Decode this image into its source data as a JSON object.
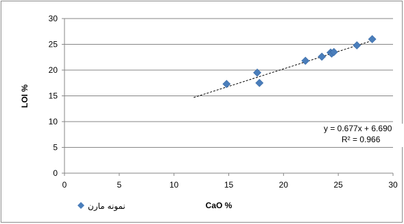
{
  "chart_data": {
    "type": "scatter",
    "xlabel": "CaO %",
    "ylabel": "LOI %",
    "xlim": [
      0,
      30
    ],
    "ylim": [
      0,
      30
    ],
    "x_ticks": [
      0,
      5,
      10,
      15,
      20,
      25,
      30
    ],
    "y_ticks": [
      0,
      5,
      10,
      15,
      20,
      25,
      30
    ],
    "grid": "horizontal",
    "marker_color": "#4a7ebb",
    "series": [
      {
        "name": "نمونه مارن",
        "points": [
          {
            "x": 14.8,
            "y": 17.3
          },
          {
            "x": 17.6,
            "y": 19.5
          },
          {
            "x": 17.8,
            "y": 17.5
          },
          {
            "x": 22.0,
            "y": 21.8
          },
          {
            "x": 23.5,
            "y": 22.6
          },
          {
            "x": 24.3,
            "y": 23.4
          },
          {
            "x": 24.4,
            "y": 23.2
          },
          {
            "x": 24.6,
            "y": 23.5
          },
          {
            "x": 26.7,
            "y": 24.8
          },
          {
            "x": 28.1,
            "y": 26.0
          }
        ]
      }
    ],
    "trendline": {
      "slope": 0.677,
      "intercept": 6.69,
      "x_range": [
        11.8,
        28.3
      ],
      "equation": "y = 0.677x + 6.690",
      "r_squared": "R² = 0.966"
    },
    "legend_position": "bottom-left"
  }
}
